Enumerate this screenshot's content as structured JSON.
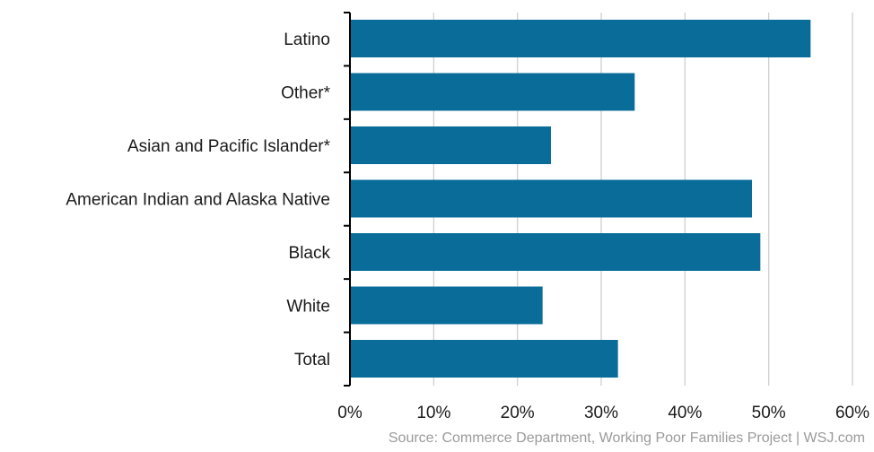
{
  "chart_data": {
    "type": "bar",
    "orientation": "horizontal",
    "categories": [
      "Latino",
      "Other*",
      "Asian and Pacific Islander*",
      "American Indian and Alaska Native",
      "Black",
      "White",
      "Total"
    ],
    "values": [
      55,
      34,
      24,
      48,
      49,
      23,
      32
    ],
    "value_unit": "percent",
    "xlim": [
      0,
      60
    ],
    "x_ticks": [
      0,
      10,
      20,
      30,
      40,
      50,
      60
    ],
    "x_tick_labels": [
      "0%",
      "10%",
      "20%",
      "30%",
      "40%",
      "50%",
      "60%"
    ],
    "grid": "vertical",
    "legend": "none",
    "bar_color": "#0a6d99",
    "grid_color": "#cfcfcf"
  },
  "source": "Source: Commerce Department, Working Poor Families Project  |  WSJ.com"
}
